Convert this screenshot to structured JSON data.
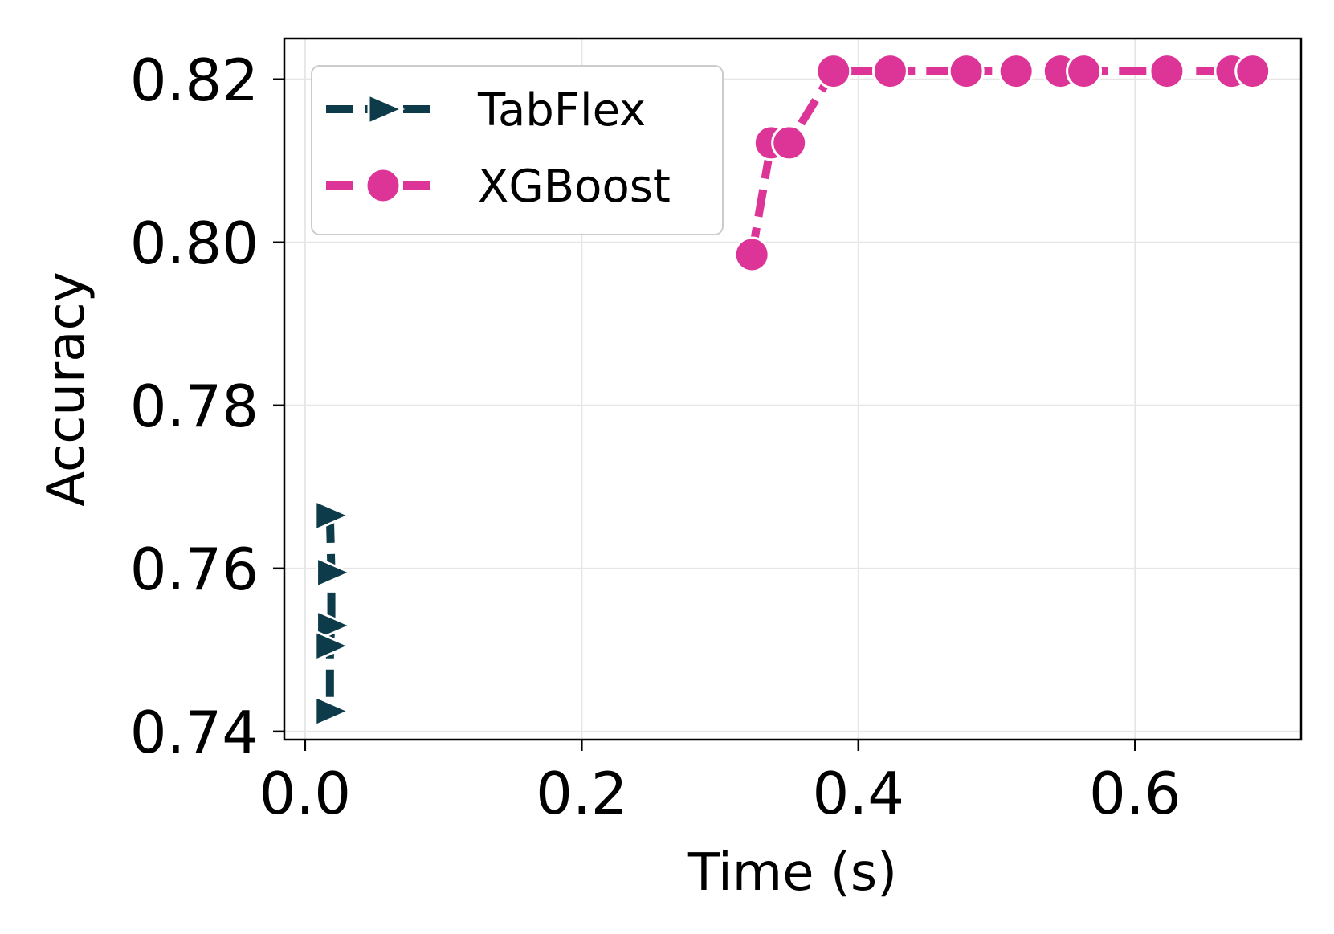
{
  "chart_data": {
    "type": "line",
    "title": "",
    "xlabel": "Time (s)",
    "ylabel": "Accuracy",
    "xlim": [
      -0.015,
      0.72
    ],
    "ylim": [
      0.739,
      0.825
    ],
    "xticks": [
      0.0,
      0.2,
      0.4,
      0.6
    ],
    "xtick_labels": [
      "0.0",
      "0.2",
      "0.4",
      "0.6"
    ],
    "yticks": [
      0.74,
      0.76,
      0.78,
      0.8,
      0.82
    ],
    "ytick_labels": [
      "0.74",
      "0.76",
      "0.78",
      "0.80",
      "0.82"
    ],
    "grid": true,
    "legend_position": "top-left",
    "series": [
      {
        "name": "TabFlex",
        "color": "#0d3b4a",
        "marker": "triangle-right",
        "line_style": "dashed",
        "x": [
          0.018,
          0.019,
          0.019,
          0.018,
          0.018
        ],
        "y": [
          0.7665,
          0.7595,
          0.753,
          0.7505,
          0.7425
        ]
      },
      {
        "name": "XGBoost",
        "color": "#dd3497",
        "marker": "circle",
        "line_style": "dashed",
        "x": [
          0.323,
          0.337,
          0.35,
          0.382,
          0.423,
          0.478,
          0.514,
          0.546,
          0.563,
          0.623,
          0.67,
          0.685
        ],
        "y": [
          0.7985,
          0.8122,
          0.8122,
          0.821,
          0.821,
          0.821,
          0.821,
          0.821,
          0.821,
          0.821,
          0.821,
          0.821
        ]
      }
    ]
  }
}
